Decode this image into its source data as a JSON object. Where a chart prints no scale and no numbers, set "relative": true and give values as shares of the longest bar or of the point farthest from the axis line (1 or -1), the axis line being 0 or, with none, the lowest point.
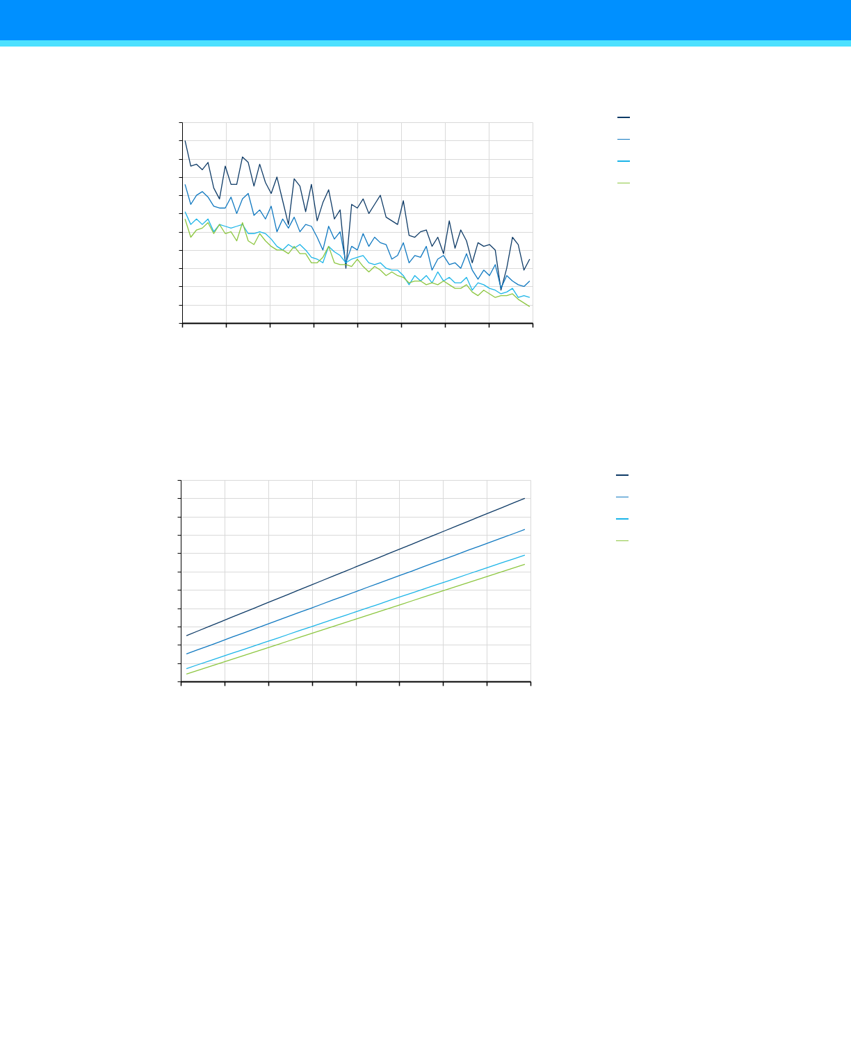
{
  "chart_data": [
    {
      "type": "line",
      "relative": true,
      "grid": true,
      "tick_labels": false,
      "categories": [
        null,
        null,
        null,
        null,
        null,
        null,
        null,
        null,
        null,
        null,
        null,
        null,
        null,
        null,
        null,
        null,
        null,
        null,
        null,
        null,
        null,
        null,
        null,
        null,
        null,
        null,
        null,
        null,
        null,
        null,
        null,
        null,
        null,
        null,
        null,
        null,
        null,
        null,
        null,
        null,
        null,
        null,
        null,
        null,
        null,
        null,
        null,
        null,
        null,
        null,
        null,
        null,
        null,
        null,
        null,
        null,
        null,
        null,
        null,
        null,
        null
      ],
      "series": [
        {
          "color": "#0d3a66",
          "values": [
            1,
            0.86,
            0.87,
            0.84,
            0.88,
            0.74,
            0.68,
            0.86,
            0.76,
            0.76,
            0.91,
            0.88,
            0.75,
            0.87,
            0.77,
            0.71,
            0.8,
            0.67,
            0.54,
            0.79,
            0.75,
            0.61,
            0.76,
            0.56,
            0.66,
            0.73,
            0.57,
            0.62,
            0.3,
            0.65,
            0.63,
            0.68,
            0.6,
            0.65,
            0.7,
            0.58,
            0.56,
            0.54,
            0.67,
            0.48,
            0.47,
            0.5,
            0.51,
            0.42,
            0.47,
            0.38,
            0.56,
            0.41,
            0.51,
            0.45,
            0.33,
            0.44,
            0.42,
            0.43,
            0.4,
            0.18,
            0.3,
            0.47,
            0.43,
            0.29,
            0.35
          ]
        },
        {
          "color": "#0f78c0",
          "values": [
            0.76,
            0.65,
            0.7,
            0.72,
            0.69,
            0.64,
            0.63,
            0.63,
            0.69,
            0.6,
            0.68,
            0.71,
            0.59,
            0.62,
            0.57,
            0.64,
            0.5,
            0.57,
            0.52,
            0.58,
            0.5,
            0.54,
            0.53,
            0.47,
            0.4,
            0.53,
            0.46,
            0.5,
            0.33,
            0.42,
            0.4,
            0.49,
            0.42,
            0.47,
            0.44,
            0.43,
            0.35,
            0.37,
            0.44,
            0.33,
            0.37,
            0.36,
            0.42,
            0.29,
            0.35,
            0.37,
            0.32,
            0.33,
            0.3,
            0.38,
            0.29,
            0.24,
            0.29,
            0.26,
            0.32,
            0.19,
            0.26,
            0.23,
            0.21,
            0.2,
            0.23
          ]
        },
        {
          "color": "#1ab4e8",
          "values": [
            0.61,
            0.54,
            0.57,
            0.54,
            0.57,
            0.5,
            0.54,
            0.53,
            0.52,
            0.53,
            0.54,
            0.49,
            0.49,
            0.5,
            0.49,
            0.46,
            0.42,
            0.4,
            0.43,
            0.41,
            0.43,
            0.4,
            0.36,
            0.35,
            0.33,
            0.42,
            0.39,
            0.37,
            0.33,
            0.35,
            0.36,
            0.37,
            0.33,
            0.32,
            0.33,
            0.3,
            0.29,
            0.29,
            0.26,
            0.21,
            0.26,
            0.23,
            0.26,
            0.22,
            0.28,
            0.23,
            0.25,
            0.22,
            0.22,
            0.25,
            0.18,
            0.22,
            0.21,
            0.19,
            0.18,
            0.16,
            0.17,
            0.19,
            0.14,
            0.15,
            0.14
          ]
        },
        {
          "color": "#8cc63f",
          "values": [
            0.57,
            0.47,
            0.51,
            0.52,
            0.55,
            0.49,
            0.54,
            0.49,
            0.5,
            0.45,
            0.55,
            0.45,
            0.43,
            0.49,
            0.45,
            0.42,
            0.4,
            0.4,
            0.38,
            0.42,
            0.38,
            0.38,
            0.33,
            0.33,
            0.36,
            0.42,
            0.33,
            0.32,
            0.32,
            0.31,
            0.35,
            0.31,
            0.28,
            0.31,
            0.29,
            0.26,
            0.28,
            0.26,
            0.25,
            0.22,
            0.23,
            0.23,
            0.21,
            0.22,
            0.21,
            0.23,
            0.21,
            0.19,
            0.19,
            0.21,
            0.17,
            0.15,
            0.18,
            0.16,
            0.14,
            0.15,
            0.15,
            0.16,
            0.13,
            0.11,
            0.09
          ]
        }
      ]
    },
    {
      "type": "line",
      "relative": true,
      "grid": true,
      "tick_labels": false,
      "categories": [
        null,
        null,
        null,
        null,
        null,
        null,
        null,
        null,
        null,
        null,
        null,
        null,
        null,
        null,
        null,
        null,
        null,
        null,
        null,
        null,
        null,
        null,
        null,
        null,
        null,
        null,
        null,
        null,
        null,
        null,
        null
      ],
      "series": [
        {
          "color": "#0d3a66",
          "values": [
            0.25,
            0.275,
            0.3,
            0.325,
            0.35,
            0.375,
            0.4,
            0.425,
            0.45,
            0.475,
            0.5,
            0.525,
            0.55,
            0.575,
            0.6,
            0.625,
            0.65,
            0.675,
            0.7,
            0.725,
            0.75,
            0.775,
            0.8,
            0.825,
            0.85,
            0.875,
            0.9,
            0.925,
            0.95,
            0.975,
            1
          ]
        },
        {
          "color": "#0f78c0",
          "values": [
            0.15,
            0.173,
            0.195,
            0.218,
            0.241,
            0.263,
            0.286,
            0.309,
            0.331,
            0.354,
            0.377,
            0.399,
            0.422,
            0.445,
            0.467,
            0.49,
            0.513,
            0.535,
            0.558,
            0.581,
            0.603,
            0.626,
            0.649,
            0.671,
            0.694,
            0.717,
            0.739,
            0.762,
            0.785,
            0.807,
            0.83
          ]
        },
        {
          "color": "#1ab4e8",
          "values": [
            0.07,
            0.091,
            0.111,
            0.132,
            0.153,
            0.173,
            0.194,
            0.215,
            0.235,
            0.256,
            0.277,
            0.297,
            0.318,
            0.339,
            0.359,
            0.38,
            0.401,
            0.421,
            0.442,
            0.463,
            0.483,
            0.504,
            0.525,
            0.545,
            0.566,
            0.587,
            0.607,
            0.628,
            0.649,
            0.669,
            0.69
          ]
        },
        {
          "color": "#8cc63f",
          "values": [
            0.04,
            0.06,
            0.08,
            0.1,
            0.12,
            0.14,
            0.16,
            0.18,
            0.2,
            0.22,
            0.24,
            0.26,
            0.28,
            0.3,
            0.32,
            0.34,
            0.36,
            0.38,
            0.4,
            0.42,
            0.44,
            0.46,
            0.48,
            0.5,
            0.52,
            0.54,
            0.56,
            0.58,
            0.6,
            0.62,
            0.64
          ]
        }
      ]
    }
  ]
}
